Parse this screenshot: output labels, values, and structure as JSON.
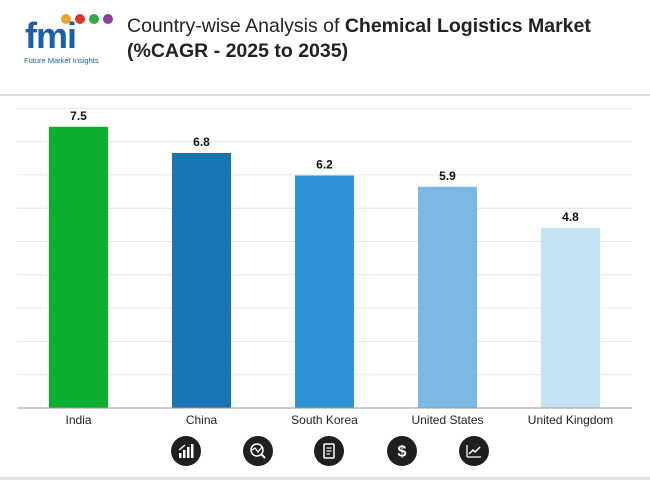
{
  "header": {
    "logo_text": "fmi",
    "logo_subtitle": "Future Market Insights",
    "title_normal": "Country-wise Analysis of ",
    "title_bold": "Chemical Logistics Market",
    "title_line2": "(%CAGR - 2025 to 2035)"
  },
  "chart_data": {
    "type": "bar",
    "title": "Country-wise Analysis of Chemical Logistics Market (%CAGR - 2025 to 2035)",
    "categories": [
      "India",
      "China",
      "South Korea",
      "United States",
      "United Kingdom"
    ],
    "values": [
      7.5,
      6.8,
      6.2,
      5.9,
      4.8
    ],
    "data_labels": [
      "7.5",
      "6.8",
      "6.2",
      "5.9",
      "4.8"
    ],
    "bar_colors": [
      "#0aaf2e",
      "#1a73b2",
      "#2e94d6",
      "#7ab9e2",
      "#c4e2f3"
    ],
    "xlabel": "",
    "ylabel": "",
    "ylim": [
      0,
      8
    ],
    "grid": true,
    "legend": "none"
  },
  "footer_icons": [
    "growth-chart-icon",
    "globe-analysis-icon",
    "report-document-icon",
    "dollar-icon",
    "trend-line-icon"
  ],
  "colors": {
    "logo_blue": "#1a5fa8",
    "icon_dark": "#1f1f1f",
    "grid": "#e6e6e6",
    "axis": "#9a9a9a"
  }
}
